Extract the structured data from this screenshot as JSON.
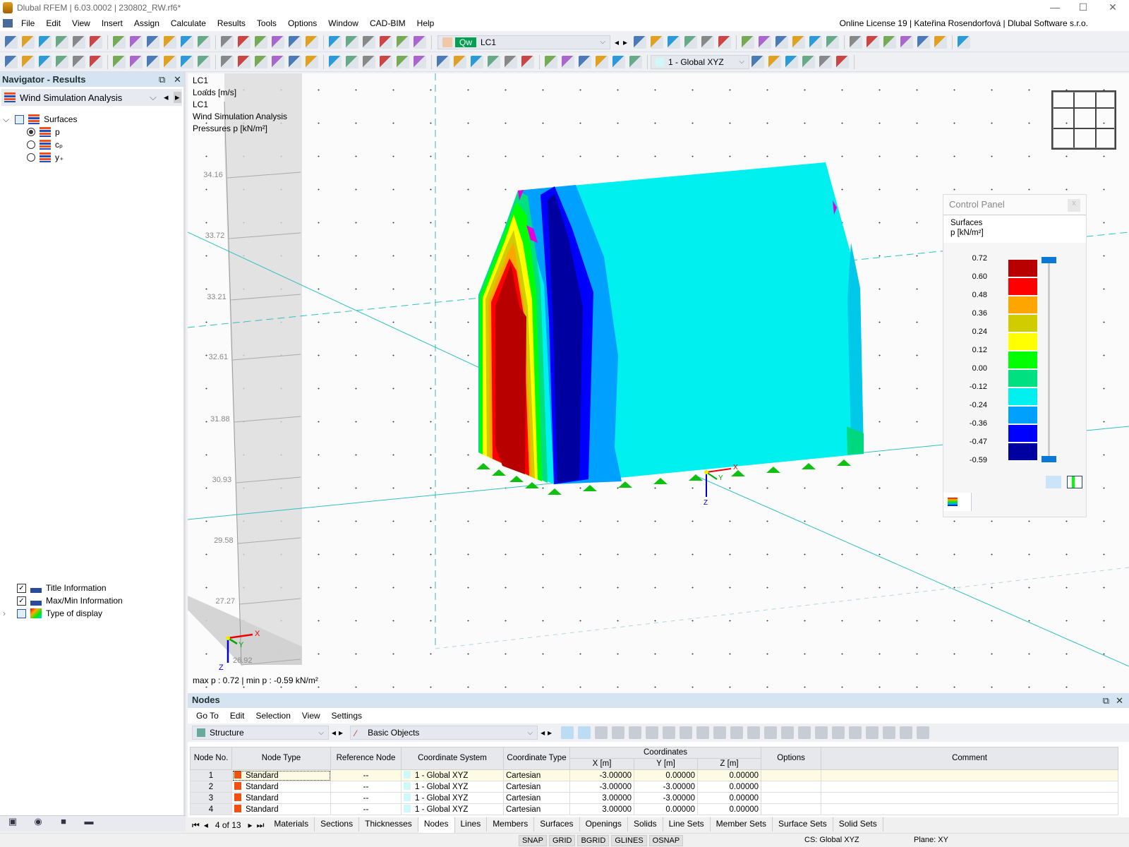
{
  "window": {
    "title": "Dlubal RFEM | 6.03.0002 | 230802_RW.rf6*",
    "minimize": "—",
    "maximize": "☐",
    "close": "✕"
  },
  "menu": {
    "items": [
      "File",
      "Edit",
      "View",
      "Insert",
      "Assign",
      "Calculate",
      "Results",
      "Tools",
      "Options",
      "Window",
      "CAD-BIM",
      "Help"
    ],
    "license": "Online License 19 | Kateřina Rosendorfová | Dlubal Software s.r.o."
  },
  "toolbar1": {
    "icons": [
      "new-model-icon",
      "open-icon",
      "dlubal-center-icon",
      "webservice-icon",
      "print-preview-icon",
      "save-icon",
      "print-icon",
      "report-icon",
      "document-icon",
      "undo-icon",
      "redo-icon",
      "table-icon",
      "table-grid-icon",
      "table-color-icon",
      "console-icon",
      "script-icon",
      "list-icon",
      "polygon-select-icon",
      "target-icon",
      "zoom-target-icon",
      "select-icon",
      "info-icon",
      "load-wizard-icon",
      "load-icon"
    ],
    "load_case_badge": "Qw",
    "load_case": "LC1",
    "icons_right": [
      "filter-delete-icon",
      "result-values-icon",
      "xxx-values-icon",
      "result-eye-icon",
      "result-xxx-icon",
      "solid-icon",
      "grid-result-icon",
      "line-result-icon",
      "line-xxx-icon",
      "transfer-icon",
      "ruler-icon",
      "delete-view-icon",
      "cube-icon",
      "cube-edit-icon",
      "cube-section-icon",
      "axis-x-icon",
      "axis-y-icon",
      "axis-z-icon",
      "axis-minus-x-icon"
    ]
  },
  "toolbar2": {
    "icons": [
      "node-icon",
      "line-icon",
      "member-icon",
      "polyline-icon",
      "support-icon",
      "member-support-icon",
      "surface-support-icon",
      "dimension-icon",
      "dimension-xx-icon",
      "frame-icon",
      "surface-icon",
      "solid-icon",
      "opening-icon",
      "block-icon",
      "cube-icon",
      "bar-icon",
      "load-icon",
      "load-line-icon",
      "load-surface-icon",
      "load-solid-icon",
      "load-free-icon",
      "filter-icon",
      "view-icon",
      "film-icon",
      "deformation-icon",
      "color-surface-icon",
      "box-icon",
      "arrow-icon",
      "knife-icon",
      "line-load-icon",
      "line-load-2-icon",
      "line-load-3-icon",
      "line-load-4-icon",
      "plane-icon",
      "star-icon",
      "color-scale-icon"
    ],
    "coord_system": "1 - Global XYZ",
    "icons_right": [
      "coord-icon",
      "grid-icon",
      "snap-icon",
      "section-icon",
      "selection-icon",
      "table-view-icon"
    ]
  },
  "navigator": {
    "title": "Navigator - Results",
    "selector": "Wind Simulation Analysis",
    "tree": {
      "root": "Surfaces",
      "items": [
        {
          "label": "p",
          "selected": true
        },
        {
          "label": "cₚ",
          "selected": false
        },
        {
          "label": "y₊",
          "selected": false
        }
      ]
    },
    "bottom": [
      {
        "label": "Title Information",
        "checked": true
      },
      {
        "label": "Max/Min Information",
        "checked": true
      },
      {
        "label": "Type of display",
        "checked": false
      }
    ],
    "bottom_icons": [
      "navigator-data-icon",
      "eye-icon",
      "camera-icon",
      "results-icon"
    ]
  },
  "viewport": {
    "info": [
      "LC1",
      "Loads [m/s]",
      "LC1",
      "Wind Simulation Analysis",
      "Pressures p [kN/m²]"
    ],
    "maxmin": "max p : 0.72 | min p : -0.59 kN/m²",
    "elevations": [
      "34.16",
      "33.72",
      "33.21",
      "32.61",
      "31.88",
      "30.93",
      "29.58",
      "27.27",
      "26.92"
    ],
    "axes": {
      "x": "X",
      "y": "Y",
      "z": "Z"
    }
  },
  "control_panel": {
    "title": "Control Panel",
    "close": "x",
    "heading": "Surfaces",
    "unit": "p [kN/m²]",
    "legend": {
      "values": [
        "0.72",
        "0.60",
        "0.48",
        "0.36",
        "0.24",
        "0.12",
        "0.00",
        "-0.12",
        "-0.24",
        "-0.36",
        "-0.47",
        "-0.59"
      ],
      "colors": [
        "#b80000",
        "#ff0000",
        "#ffa500",
        "#d0cc00",
        "#ffff00",
        "#00ff00",
        "#00e080",
        "#00f0f0",
        "#00a0ff",
        "#0000ff",
        "#0000a0"
      ]
    }
  },
  "nodes_panel": {
    "title": "Nodes",
    "menu": [
      "Go To",
      "Edit",
      "Selection",
      "View",
      "Settings"
    ],
    "structure": "Structure",
    "objects": "Basic Objects",
    "columns": [
      "Node No.",
      "Node Type",
      "Reference Node",
      "Coordinate System",
      "Coordinate Type",
      "X [m]",
      "Y [m]",
      "Z [m]",
      "Options",
      "Comment"
    ],
    "group_header": "Coordinates",
    "rows": [
      [
        "1",
        "Standard",
        "--",
        "1 - Global XYZ",
        "Cartesian",
        "-3.00000",
        "0.00000",
        "0.00000",
        "",
        ""
      ],
      [
        "2",
        "Standard",
        "--",
        "1 - Global XYZ",
        "Cartesian",
        "-3.00000",
        "-3.00000",
        "0.00000",
        "",
        ""
      ],
      [
        "3",
        "Standard",
        "--",
        "1 - Global XYZ",
        "Cartesian",
        "3.00000",
        "-3.00000",
        "0.00000",
        "",
        ""
      ],
      [
        "4",
        "Standard",
        "--",
        "1 - Global XYZ",
        "Cartesian",
        "3.00000",
        "0.00000",
        "0.00000",
        "",
        ""
      ]
    ],
    "pager": "4 of 13",
    "tabs": [
      "Materials",
      "Sections",
      "Thicknesses",
      "Nodes",
      "Lines",
      "Members",
      "Surfaces",
      "Openings",
      "Solids",
      "Line Sets",
      "Member Sets",
      "Surface Sets",
      "Solid Sets"
    ],
    "active_tab": "Nodes"
  },
  "status": {
    "toggles": [
      "SNAP",
      "GRID",
      "BGRID",
      "GLINES",
      "OSNAP"
    ],
    "cs": "CS: Global XYZ",
    "plane": "Plane: XY"
  }
}
